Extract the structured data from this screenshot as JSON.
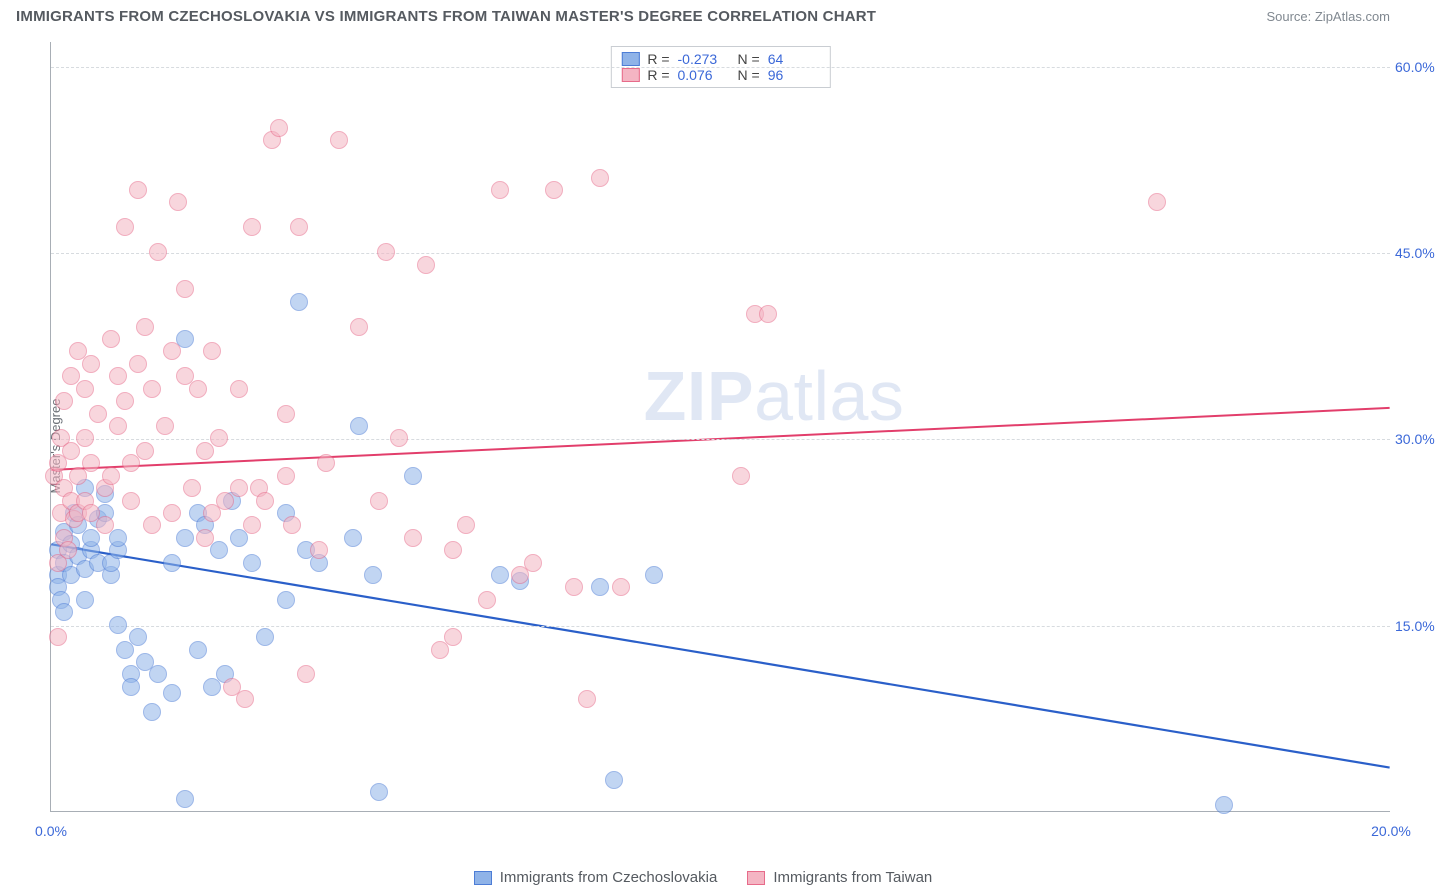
{
  "header": {
    "title": "IMMIGRANTS FROM CZECHOSLOVAKIA VS IMMIGRANTS FROM TAIWAN MASTER'S DEGREE CORRELATION CHART",
    "source": "Source: ZipAtlas.com"
  },
  "watermark": "ZIPatlas",
  "chart": {
    "type": "scatter",
    "ylabel": "Master's Degree",
    "xlim": [
      0,
      20
    ],
    "ylim": [
      0,
      62
    ],
    "xticks": [
      {
        "v": 0,
        "label": "0.0%"
      },
      {
        "v": 20,
        "label": "20.0%"
      }
    ],
    "yticks": [
      {
        "v": 15,
        "label": "15.0%"
      },
      {
        "v": 30,
        "label": "30.0%"
      },
      {
        "v": 45,
        "label": "45.0%"
      },
      {
        "v": 60,
        "label": "60.0%"
      }
    ],
    "background_color": "#ffffff",
    "grid_color": "#d7dbdf",
    "axis_color": "#a8aeb5",
    "tick_color": "#3b68d8",
    "marker_radius": 9,
    "marker_opacity": 0.55,
    "series": [
      {
        "name": "Immigrants from Czechoslovakia",
        "fill": "#8fb3e8",
        "stroke": "#4d7dd6",
        "R": "-0.273",
        "N": "64",
        "trend": {
          "y0": 21.5,
          "y1": 3.5,
          "color": "#2a5fc9",
          "width": 2.2
        },
        "points": [
          [
            0.1,
            19
          ],
          [
            0.1,
            18
          ],
          [
            0.1,
            21
          ],
          [
            0.15,
            17
          ],
          [
            0.2,
            20
          ],
          [
            0.2,
            16
          ],
          [
            0.2,
            22.5
          ],
          [
            0.3,
            21.5
          ],
          [
            0.3,
            19
          ],
          [
            0.35,
            24
          ],
          [
            0.4,
            20.5
          ],
          [
            0.4,
            23
          ],
          [
            0.5,
            19.5
          ],
          [
            0.5,
            17
          ],
          [
            0.5,
            26
          ],
          [
            0.6,
            21
          ],
          [
            0.6,
            22
          ],
          [
            0.7,
            20
          ],
          [
            0.7,
            23.5
          ],
          [
            0.8,
            24
          ],
          [
            0.8,
            25.5
          ],
          [
            0.9,
            19
          ],
          [
            0.9,
            20
          ],
          [
            1.0,
            21
          ],
          [
            1.0,
            22
          ],
          [
            1.0,
            15
          ],
          [
            1.1,
            13
          ],
          [
            1.2,
            11
          ],
          [
            1.2,
            10
          ],
          [
            1.3,
            14
          ],
          [
            1.4,
            12
          ],
          [
            1.5,
            8
          ],
          [
            1.6,
            11
          ],
          [
            1.8,
            9.5
          ],
          [
            1.8,
            20
          ],
          [
            2.0,
            22
          ],
          [
            2.0,
            38
          ],
          [
            2.0,
            1
          ],
          [
            2.2,
            13
          ],
          [
            2.2,
            24
          ],
          [
            2.3,
            23
          ],
          [
            2.4,
            10
          ],
          [
            2.5,
            21
          ],
          [
            2.6,
            11
          ],
          [
            2.7,
            25
          ],
          [
            2.8,
            22
          ],
          [
            3.0,
            20
          ],
          [
            3.2,
            14
          ],
          [
            3.5,
            24
          ],
          [
            3.5,
            17
          ],
          [
            3.7,
            41
          ],
          [
            3.8,
            21
          ],
          [
            4.0,
            20
          ],
          [
            4.5,
            22
          ],
          [
            4.6,
            31
          ],
          [
            4.8,
            19
          ],
          [
            4.9,
            1.5
          ],
          [
            5.4,
            27
          ],
          [
            6.7,
            19
          ],
          [
            7.0,
            18.5
          ],
          [
            8.2,
            18
          ],
          [
            8.4,
            2.5
          ],
          [
            9.0,
            19
          ],
          [
            17.5,
            0.5
          ]
        ]
      },
      {
        "name": "Immigrants from Taiwan",
        "fill": "#f4b5c3",
        "stroke": "#e76b8a",
        "R": "0.076",
        "N": "96",
        "trend": {
          "y0": 27.5,
          "y1": 32.5,
          "color": "#e23e6b",
          "width": 2.0
        },
        "points": [
          [
            0.05,
            27
          ],
          [
            0.1,
            28
          ],
          [
            0.1,
            14
          ],
          [
            0.1,
            20
          ],
          [
            0.15,
            24
          ],
          [
            0.15,
            30
          ],
          [
            0.2,
            22
          ],
          [
            0.2,
            26
          ],
          [
            0.2,
            33
          ],
          [
            0.25,
            21
          ],
          [
            0.3,
            25
          ],
          [
            0.3,
            29
          ],
          [
            0.3,
            35
          ],
          [
            0.35,
            23.5
          ],
          [
            0.4,
            24
          ],
          [
            0.4,
            27
          ],
          [
            0.4,
            37
          ],
          [
            0.5,
            25
          ],
          [
            0.5,
            30
          ],
          [
            0.5,
            34
          ],
          [
            0.6,
            24
          ],
          [
            0.6,
            28
          ],
          [
            0.6,
            36
          ],
          [
            0.7,
            32
          ],
          [
            0.8,
            26
          ],
          [
            0.8,
            23
          ],
          [
            0.9,
            27
          ],
          [
            0.9,
            38
          ],
          [
            1.0,
            31
          ],
          [
            1.0,
            35
          ],
          [
            1.1,
            33
          ],
          [
            1.1,
            47
          ],
          [
            1.2,
            28
          ],
          [
            1.2,
            25
          ],
          [
            1.3,
            36
          ],
          [
            1.3,
            50
          ],
          [
            1.4,
            29
          ],
          [
            1.4,
            39
          ],
          [
            1.5,
            34
          ],
          [
            1.5,
            23
          ],
          [
            1.6,
            45
          ],
          [
            1.7,
            31
          ],
          [
            1.8,
            37
          ],
          [
            1.8,
            24
          ],
          [
            1.9,
            49
          ],
          [
            2.0,
            35
          ],
          [
            2.0,
            42
          ],
          [
            2.1,
            26
          ],
          [
            2.2,
            34
          ],
          [
            2.3,
            29
          ],
          [
            2.3,
            22
          ],
          [
            2.4,
            24
          ],
          [
            2.4,
            37
          ],
          [
            2.5,
            30
          ],
          [
            2.6,
            25
          ],
          [
            2.7,
            10
          ],
          [
            2.8,
            34
          ],
          [
            2.8,
            26
          ],
          [
            2.9,
            9
          ],
          [
            3.0,
            47
          ],
          [
            3.0,
            23
          ],
          [
            3.1,
            26
          ],
          [
            3.2,
            25
          ],
          [
            3.3,
            54
          ],
          [
            3.4,
            55
          ],
          [
            3.5,
            32
          ],
          [
            3.5,
            27
          ],
          [
            3.6,
            23
          ],
          [
            3.7,
            47
          ],
          [
            3.8,
            11
          ],
          [
            4.0,
            21
          ],
          [
            4.1,
            28
          ],
          [
            4.3,
            54
          ],
          [
            4.6,
            39
          ],
          [
            4.9,
            25
          ],
          [
            5.2,
            30
          ],
          [
            5.4,
            22
          ],
          [
            5.6,
            44
          ],
          [
            5.8,
            13
          ],
          [
            6.0,
            21
          ],
          [
            6.2,
            23
          ],
          [
            6.5,
            17
          ],
          [
            6.7,
            50
          ],
          [
            7.0,
            19
          ],
          [
            7.2,
            20
          ],
          [
            7.5,
            50
          ],
          [
            7.8,
            18
          ],
          [
            8.0,
            9
          ],
          [
            8.2,
            51
          ],
          [
            8.5,
            18
          ],
          [
            10.5,
            40
          ],
          [
            10.7,
            40
          ],
          [
            10.3,
            27
          ],
          [
            16.5,
            49
          ],
          [
            5.0,
            45
          ],
          [
            6.0,
            14
          ]
        ]
      }
    ]
  }
}
